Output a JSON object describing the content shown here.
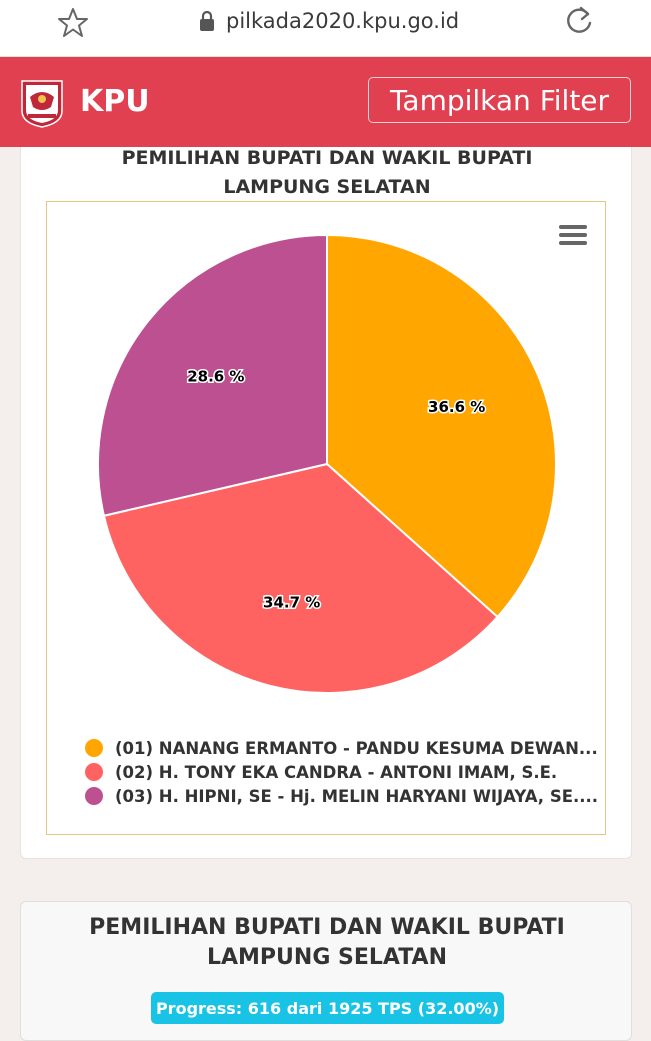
{
  "browser": {
    "url": "pilkada2020.kpu.go.id"
  },
  "header": {
    "brand": "KPU",
    "filter_button": "Tampilkan Filter",
    "color": "#e0404f"
  },
  "card1": {
    "title_line1": "PEMILIHAN BUPATI DAN WAKIL BUPATI",
    "title_line2": "LAMPUNG SELATAN"
  },
  "chart_data": {
    "type": "pie",
    "slices": [
      {
        "label": "(01) NANANG ERMANTO - PANDU KESUMA DEWAN...",
        "value": 36.6,
        "display": "36.6 %",
        "color": "#ffa600"
      },
      {
        "label": "(02) H. TONY EKA CANDRA - ANTONI IMAM, S.E.",
        "value": 34.7,
        "display": "34.7 %",
        "color": "#ff6361"
      },
      {
        "label": "(03) H. HIPNI, SE - Hj. MELIN HARYANI WIJAYA, SE....",
        "value": 28.6,
        "display": "28.6 %",
        "color": "#bc5090"
      }
    ],
    "legend_position": "bottom-left"
  },
  "card2": {
    "title_line1": "PEMILIHAN BUPATI DAN WAKIL BUPATI",
    "title_line2": "LAMPUNG SELATAN",
    "progress_text": "Progress: 616 dari 1925 TPS (32.00%)",
    "progress_color": "#19c3e5"
  },
  "icons": [
    "star-icon",
    "lock-icon",
    "reload-icon",
    "kpu-logo",
    "chart-menu-icon"
  ]
}
